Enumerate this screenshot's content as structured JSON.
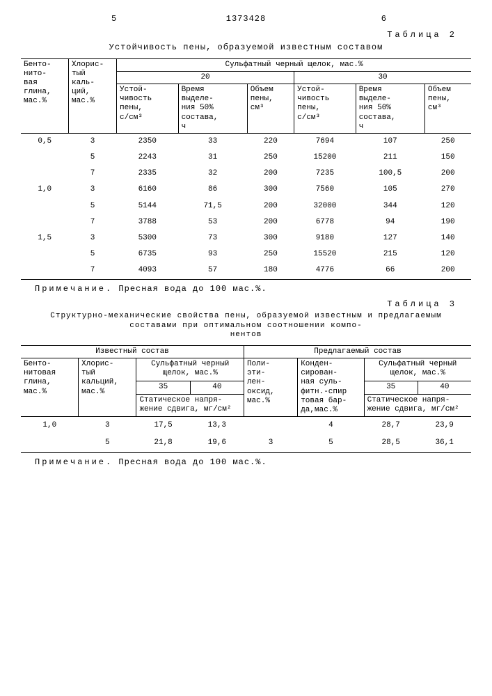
{
  "page_left_num": "5",
  "page_right_num": "6",
  "patent_number": "1373428",
  "table2": {
    "label": "Таблица 2",
    "caption": "Устойчивость пены, образуемой известным составом",
    "col1": "Бенто-\nнито-\nвая\nглина,\nмас.%",
    "col2": "Хлорис-\nтый\nкаль-\nций,\nмас.%",
    "head_span": "Сульфатный черный щелок, мас.%",
    "g20": "20",
    "g30": "30",
    "sub1": "Устой-\nчивость\nпены,\nс/см³",
    "sub2": "Время\nвыделе-\nния 50%\nсостава,\nч",
    "sub3": "Объем\nпены,\nсм³",
    "rows": [
      {
        "a": "0,5",
        "b": "3",
        "c": "2350",
        "d": "33",
        "e": "220",
        "f": "7694",
        "g": "107",
        "h": "250"
      },
      {
        "a": "",
        "b": "5",
        "c": "2243",
        "d": "31",
        "e": "250",
        "f": "15200",
        "g": "211",
        "h": "150"
      },
      {
        "a": "",
        "b": "7",
        "c": "2335",
        "d": "32",
        "e": "200",
        "f": "7235",
        "g": "100,5",
        "h": "200"
      },
      {
        "a": "1,0",
        "b": "3",
        "c": "6160",
        "d": "86",
        "e": "300",
        "f": "7560",
        "g": "105",
        "h": "270"
      },
      {
        "a": "",
        "b": "5",
        "c": "5144",
        "d": "71,5",
        "e": "200",
        "f": "32000",
        "g": "344",
        "h": "120"
      },
      {
        "a": "",
        "b": "7",
        "c": "3788",
        "d": "53",
        "e": "200",
        "f": "6778",
        "g": "94",
        "h": "190"
      },
      {
        "a": "1,5",
        "b": "3",
        "c": "5300",
        "d": "73",
        "e": "300",
        "f": "9180",
        "g": "127",
        "h": "140"
      },
      {
        "a": "",
        "b": "5",
        "c": "6735",
        "d": "93",
        "e": "250",
        "f": "15520",
        "g": "215",
        "h": "120"
      },
      {
        "a": "",
        "b": "7",
        "c": "4093",
        "d": "57",
        "e": "180",
        "f": "4776",
        "g": "66",
        "h": "200"
      }
    ]
  },
  "note1_label": "Примечание.",
  "note1_text": "Пресная вода до 100 мас.%.",
  "table3": {
    "label": "Таблица 3",
    "caption": "Структурно-механические свойства пены, образуемой известным и предлагаемым составами при оптимальном соотношении компо-\nнентов",
    "known": "Известный состав",
    "proposed": "Предлагаемый состав",
    "col1": "Бенто-\nнитовая\nглина,\nмас.%",
    "col2": "Хлорис-\nтый\nкальций,\nмас.%",
    "col3": "Сульфатный черный\nщелок, мас.%",
    "c35": "35",
    "c40": "40",
    "subshear": "Статическое напря-\nжение сдвига, мг/см²",
    "col4": "Поли-\nэти-\nлен-\nоксид,\nмас.%",
    "col5": "Конден-\nсирован-\nная суль-\nфитн.-спир\nтовая бар-\nда,мас.%",
    "rows": [
      {
        "a": "1,0",
        "b": "3",
        "c": "17,5",
        "d": "13,3",
        "e": "",
        "f": "4",
        "g": "28,7",
        "h": "23,9"
      },
      {
        "a": "",
        "b": "5",
        "c": "21,8",
        "d": "19,6",
        "e": "3",
        "f": "5",
        "g": "28,5",
        "h": "36,1"
      }
    ]
  },
  "note2_label": "Примечание.",
  "note2_text": "Пресная вода до 100 мас.%."
}
